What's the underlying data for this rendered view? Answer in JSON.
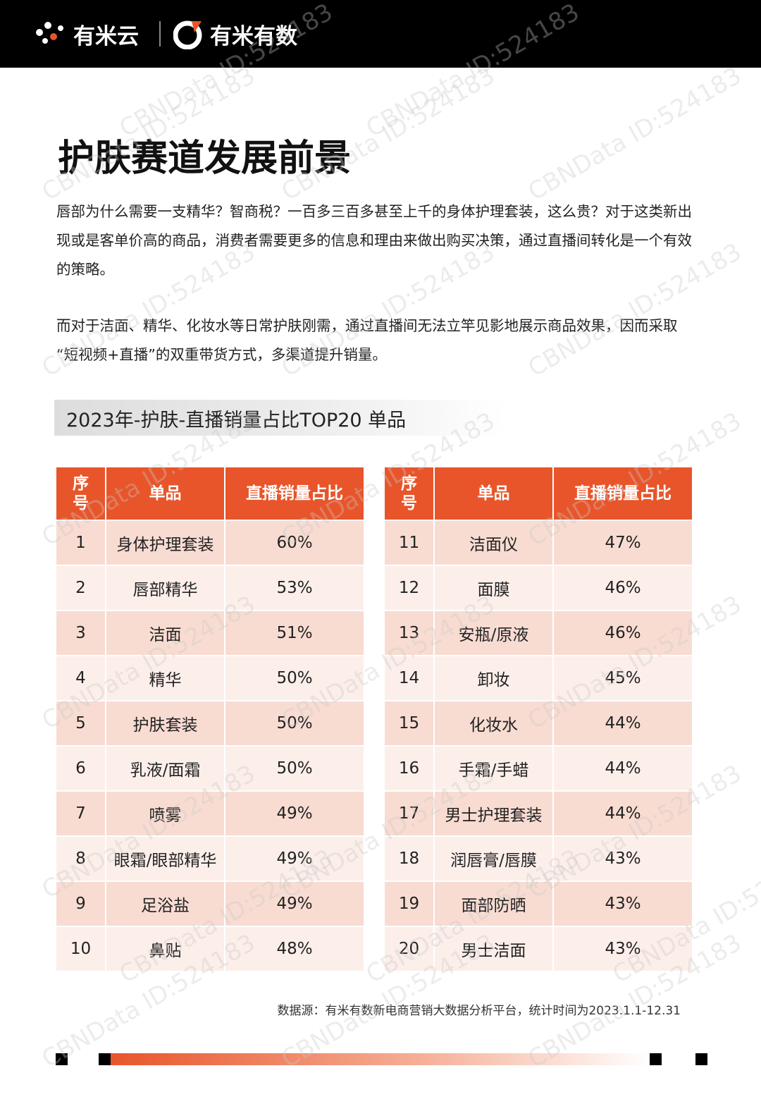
{
  "header": {
    "brands": [
      "有米云",
      "有米有数"
    ]
  },
  "title": "护肤赛道发展前景",
  "paragraphs": [
    "唇部为什么需要一支精华？智商税？一百多三百多甚至上千的身体护理套装，这么贵？对于这类新出现或是客单价高的商品，消费者需要更多的信息和理由来做出购买决策，通过直播间转化是一个有效的策略。",
    "而对于洁面、精华、化妆水等日常护肤刚需，通过直播间无法立竿见影地展示商品效果，因而采取“短视频+直播”的双重带货方式，多渠道提升销量。"
  ],
  "table_title": "2023年-护肤-直播销量占比TOP20 单品",
  "tables": [
    {
      "headers": [
        "序号",
        "单品",
        "直播销量占比"
      ],
      "rows": [
        [
          1,
          "身体护理套装",
          "60%"
        ],
        [
          2,
          "唇部精华",
          "53%"
        ],
        [
          3,
          "洁面",
          "51%"
        ],
        [
          4,
          "精华",
          "50%"
        ],
        [
          5,
          "护肤套装",
          "50%"
        ],
        [
          6,
          "乳液/面霜",
          "50%"
        ],
        [
          7,
          "喷雾",
          "49%"
        ],
        [
          8,
          "眼霜/眼部精华",
          "49%"
        ],
        [
          9,
          "足浴盐",
          "49%"
        ],
        [
          10,
          "鼻贴",
          "48%"
        ]
      ]
    },
    {
      "headers": [
        "序号",
        "单品",
        "直播销量占比"
      ],
      "rows": [
        [
          11,
          "洁面仪",
          "47%"
        ],
        [
          12,
          "面膜",
          "46%"
        ],
        [
          13,
          "安瓶/原液",
          "46%"
        ],
        [
          14,
          "卸妆",
          "45%"
        ],
        [
          15,
          "化妆水",
          "44%"
        ],
        [
          16,
          "手霜/手蜡",
          "44%"
        ],
        [
          17,
          "男士护理套装",
          "44%"
        ],
        [
          18,
          "润唇膏/唇膜",
          "43%"
        ],
        [
          19,
          "面部防晒",
          "43%"
        ],
        [
          20,
          "男士洁面",
          "43%"
        ]
      ]
    }
  ],
  "source": "数据源：有米有数新电商营销大数据分析平台，统计时间为2023.1.1-12.31",
  "watermark": "CBNData ID:524183"
}
